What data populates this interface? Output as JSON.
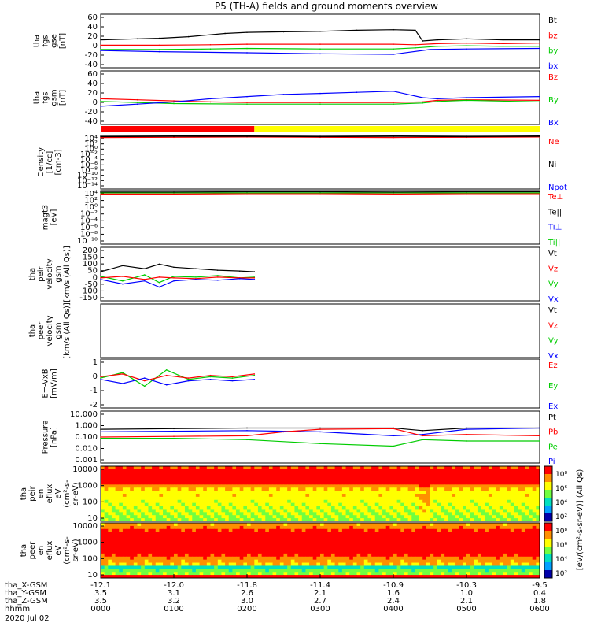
{
  "title": "P5 (TH-A) fields and ground moments overview",
  "colors": {
    "black": "#000000",
    "red": "#ff0000",
    "green": "#00cc00",
    "blue": "#0000ff",
    "yellow": "#ffff00"
  },
  "chart_data": {
    "type": "line",
    "title": "P5 (TH-A) fields and ground moments overview",
    "xaxis": {
      "rows": [
        {
          "label": "tha_X-GSM",
          "values": [
            "-12.1",
            "-12.0",
            "-11.8",
            "-11.4",
            "-10.9",
            "-10.3",
            "-9.5"
          ]
        },
        {
          "label": "tha_Y-GSM",
          "values": [
            "3.5",
            "3.1",
            "2.6",
            "2.1",
            "1.6",
            "1.0",
            "0.4"
          ]
        },
        {
          "label": "tha_Z-GSM",
          "values": [
            "3.5",
            "3.2",
            "3.0",
            "2.7",
            "2.4",
            "2.1",
            "1.8"
          ]
        },
        {
          "label": "hhmm",
          "values": [
            "0000",
            "0100",
            "0200",
            "0300",
            "0400",
            "0500",
            "0600"
          ]
        }
      ],
      "date": "2020 Jul 02",
      "range_hours": [
        0,
        6
      ]
    },
    "panels": [
      {
        "id": "fgs_gse",
        "ylabel": [
          "tha",
          "fgs",
          "gse",
          "[nT]"
        ],
        "yticks": [
          "60",
          "40",
          "20",
          "0",
          "-20",
          "-40"
        ],
        "ylim": [
          -40,
          60
        ],
        "legend": [
          {
            "name": "Bt",
            "color": "#000000"
          },
          {
            "name": "bz",
            "color": "#ff0000"
          },
          {
            "name": "by",
            "color": "#00cc00"
          },
          {
            "name": "bx",
            "color": "#0000ff"
          }
        ],
        "series": [
          {
            "name": "Bt",
            "color": "#000000",
            "x": [
              0,
              0.5,
              0.8,
              1.2,
              1.7,
              2.0,
              2.5,
              3.0,
              3.5,
              4.0,
              4.3,
              4.4,
              4.6,
              5.0,
              5.5,
              6.0
            ],
            "y": [
              12,
              14,
              15,
              18,
              24,
              26,
              27,
              28,
              30,
              31,
              30,
              10,
              12,
              14,
              12,
              12
            ]
          },
          {
            "name": "bz",
            "color": "#ff0000",
            "x": [
              0,
              0.8,
              1.5,
              2.0,
              3.0,
              4.0,
              4.3,
              4.6,
              5.0,
              5.5,
              6.0
            ],
            "y": [
              2,
              2,
              3,
              4,
              4,
              4,
              3,
              5,
              6,
              5,
              6
            ]
          },
          {
            "name": "by",
            "color": "#00cc00",
            "x": [
              0,
              0.8,
              1.5,
              2.0,
              3.0,
              4.0,
              4.3,
              4.6,
              5.0,
              5.5,
              6.0
            ],
            "y": [
              -6,
              -6,
              -5,
              -4,
              -5,
              -5,
              -3,
              0,
              1,
              0,
              0
            ]
          },
          {
            "name": "bx",
            "color": "#0000ff",
            "x": [
              0,
              0.8,
              2.0,
              3.0,
              4.0,
              4.5,
              5.0,
              6.0
            ],
            "y": [
              -8,
              -10,
              -12,
              -14,
              -15,
              -6,
              -5,
              -4
            ]
          }
        ]
      },
      {
        "id": "fgs_gsm",
        "ylabel": [
          "tha",
          "fgs",
          "gsm",
          "[nT]"
        ],
        "yticks": [
          "60",
          "40",
          "20",
          "0",
          "-20",
          "-40"
        ],
        "ylim": [
          -40,
          60
        ],
        "legend": [
          {
            "name": "Bz",
            "color": "#ff0000"
          },
          {
            "name": "By",
            "color": "#00cc00"
          },
          {
            "name": "Bx",
            "color": "#0000ff"
          }
        ],
        "series": [
          {
            "name": "Bz",
            "color": "#ff0000",
            "x": [
              0,
              0.5,
              1.0,
              1.5,
              2.0,
              3.0,
              4.0,
              4.4,
              4.6,
              5.0,
              6.0
            ],
            "y": [
              8,
              6,
              4,
              2,
              1,
              1,
              1,
              2,
              5,
              6,
              5
            ]
          },
          {
            "name": "By",
            "color": "#00cc00",
            "x": [
              0,
              0.5,
              1.0,
              2.0,
              3.0,
              4.0,
              4.4,
              4.6,
              5.0,
              6.0
            ],
            "y": [
              3,
              1,
              -1,
              -2,
              -2,
              -2,
              0,
              3,
              5,
              2
            ]
          },
          {
            "name": "Bx",
            "color": "#0000ff",
            "x": [
              0,
              0.5,
              1.0,
              1.5,
              2.0,
              2.5,
              3.0,
              3.5,
              4.0,
              4.4,
              4.6,
              5.0,
              6.0
            ],
            "y": [
              -6,
              -2,
              2,
              8,
              12,
              16,
              18,
              20,
              22,
              10,
              8,
              10,
              12
            ]
          }
        ]
      },
      {
        "id": "mode_bar",
        "type": "status",
        "segments": [
          {
            "from": 0,
            "to": 2.1,
            "color": "#ff0000"
          },
          {
            "from": 2.1,
            "to": 6,
            "color": "#ffff00"
          }
        ]
      },
      {
        "id": "density",
        "ylabel": [
          "Density",
          "[1/cc]",
          "[cm-3]"
        ],
        "yticks": [
          "10⁴",
          "10²",
          "10⁰",
          "10⁻²",
          "10⁻⁴",
          "10⁻⁶",
          "10⁻⁸",
          "10⁻¹⁰",
          "10⁻¹²",
          "10⁻¹⁴"
        ],
        "ylim": [
          -14,
          4
        ],
        "log": true,
        "legend": [
          {
            "name": "Ne",
            "color": "#ff0000"
          },
          {
            "name": "Ni",
            "color": "#000000"
          },
          {
            "name": "Npot",
            "color": "#0000ff"
          }
        ],
        "series": [
          {
            "name": "Ne",
            "color": "#ff0000",
            "x": [
              0,
              1,
              2,
              3,
              4,
              5,
              6
            ],
            "y": [
              3.3,
              3.4,
              3.5,
              3.4,
              3.3,
              3.4,
              3.5
            ]
          },
          {
            "name": "Ni",
            "color": "#000000",
            "x": [
              0,
              1,
              2,
              3,
              4,
              5,
              6
            ],
            "y": [
              3.6,
              3.7,
              3.7,
              3.6,
              3.7,
              3.6,
              3.7
            ]
          }
        ]
      },
      {
        "id": "temp",
        "ylabel": [
          "magt3",
          "[eV]"
        ],
        "yticks": [
          "10⁴",
          "10²",
          "10⁰",
          "10⁻²",
          "10⁻⁴",
          "10⁻⁶",
          "10⁻⁸",
          "10⁻¹⁰"
        ],
        "ylim": [
          -10,
          4
        ],
        "log": true,
        "legend": [
          {
            "name": "Te⊥",
            "color": "#ff0000"
          },
          {
            "name": "Te||",
            "color": "#000000"
          },
          {
            "name": "Ti⊥",
            "color": "#0000ff"
          },
          {
            "name": "Ti||",
            "color": "#00cc00"
          }
        ],
        "series": [
          {
            "name": "Te⊥",
            "color": "#ff0000",
            "x": [
              0,
              1,
              2,
              3,
              4,
              5,
              6
            ],
            "y": [
              3.1,
              3.1,
              3.2,
              3.2,
              3.1,
              3.2,
              3.2
            ]
          },
          {
            "name": "Ti||",
            "color": "#00cc00",
            "x": [
              0,
              1,
              2,
              3,
              4,
              5,
              6
            ],
            "y": [
              3.4,
              3.4,
              3.4,
              3.4,
              3.4,
              3.4,
              3.4
            ]
          },
          {
            "name": "Te||",
            "color": "#000000",
            "x": [
              0,
              1,
              2,
              3,
              4,
              5,
              6
            ],
            "y": [
              3.6,
              3.6,
              3.7,
              3.7,
              3.6,
              3.7,
              3.7
            ]
          }
        ]
      },
      {
        "id": "peir_vel",
        "ylabel": [
          "tha",
          "peir",
          "velocity",
          "gsm",
          "[km/s (All Qs)]"
        ],
        "yticks": [
          "200",
          "150",
          "100",
          "50",
          "0",
          "-50",
          "-100",
          "-150"
        ],
        "ylim": [
          -150,
          200
        ],
        "legend": [
          {
            "name": "Vt",
            "color": "#000000"
          },
          {
            "name": "Vz",
            "color": "#ff0000"
          },
          {
            "name": "Vy",
            "color": "#00cc00"
          },
          {
            "name": "Vx",
            "color": "#0000ff"
          }
        ],
        "series": [
          {
            "name": "Vt",
            "color": "#000000",
            "x": [
              0,
              0.3,
              0.6,
              0.8,
              1.0,
              1.3,
              1.6,
              1.9,
              2.1
            ],
            "y": [
              40,
              80,
              60,
              90,
              70,
              60,
              50,
              45,
              40
            ]
          },
          {
            "name": "Vy",
            "color": "#00cc00",
            "x": [
              0,
              0.3,
              0.6,
              0.8,
              1.0,
              1.3,
              1.6,
              1.9,
              2.1
            ],
            "y": [
              10,
              -20,
              20,
              -30,
              10,
              5,
              15,
              0,
              5
            ]
          },
          {
            "name": "Vz",
            "color": "#ff0000",
            "x": [
              0,
              0.3,
              0.6,
              0.8,
              1.0,
              1.3,
              1.6,
              1.9,
              2.1
            ],
            "y": [
              0,
              10,
              -10,
              5,
              0,
              -5,
              5,
              0,
              0
            ]
          },
          {
            "name": "Vx",
            "color": "#0000ff",
            "x": [
              0,
              0.3,
              0.6,
              0.8,
              1.0,
              1.3,
              1.6,
              1.9,
              2.1
            ],
            "y": [
              -10,
              -40,
              -20,
              -60,
              -20,
              -10,
              -15,
              -5,
              -10
            ]
          }
        ]
      },
      {
        "id": "peer_vel",
        "ylabel": [
          "tha",
          "peer",
          "velocity",
          "gsm",
          "[km/s (All Qs)]"
        ],
        "yticks": [],
        "ylim": [
          -150,
          200
        ],
        "legend": [
          {
            "name": "Vt",
            "color": "#000000"
          },
          {
            "name": "Vz",
            "color": "#ff0000"
          },
          {
            "name": "Vy",
            "color": "#00cc00"
          },
          {
            "name": "Vx",
            "color": "#0000ff"
          }
        ],
        "series": []
      },
      {
        "id": "efield",
        "ylabel": [
          "E=-VxB",
          "[mV/m]"
        ],
        "yticks": [
          "1",
          "0",
          "-1",
          "-2"
        ],
        "ylim": [
          -2,
          1.6
        ],
        "legend": [
          {
            "name": "Ez",
            "color": "#ff0000"
          },
          {
            "name": "Ey",
            "color": "#00cc00"
          },
          {
            "name": "Ex",
            "color": "#0000ff"
          }
        ],
        "series": [
          {
            "name": "Ey",
            "color": "#00cc00",
            "x": [
              0,
              0.3,
              0.6,
              0.9,
              1.2,
              1.5,
              1.8,
              2.1
            ],
            "y": [
              0.2,
              0.6,
              -0.4,
              0.8,
              0.1,
              0.3,
              0.2,
              0.4
            ]
          },
          {
            "name": "Ez",
            "color": "#ff0000",
            "x": [
              0,
              0.3,
              0.6,
              0.9,
              1.2,
              1.5,
              1.8,
              2.1
            ],
            "y": [
              0.3,
              0.5,
              0.0,
              0.4,
              0.2,
              0.4,
              0.3,
              0.5
            ]
          },
          {
            "name": "Ex",
            "color": "#0000ff",
            "x": [
              0,
              0.3,
              0.6,
              0.9,
              1.2,
              1.5,
              1.8,
              2.1
            ],
            "y": [
              0.1,
              -0.2,
              0.2,
              -0.3,
              0.0,
              0.1,
              0.0,
              0.1
            ]
          }
        ]
      },
      {
        "id": "pressure",
        "ylabel": [
          "Pressure",
          "[nPa]"
        ],
        "yticks": [
          "10.000",
          "1.000",
          "0.100",
          "0.010",
          "0.001"
        ],
        "ylim": [
          -3,
          1
        ],
        "log": true,
        "legend": [
          {
            "name": "Pt",
            "color": "#000000"
          },
          {
            "name": "Pb",
            "color": "#ff0000"
          },
          {
            "name": "Pe",
            "color": "#00cc00"
          },
          {
            "name": "Pi",
            "color": "#0000ff"
          }
        ],
        "series": [
          {
            "name": "Pt",
            "color": "#000000",
            "x": [
              0,
              1,
              2,
              3,
              4,
              4.4,
              5,
              6
            ],
            "y": [
              -0.4,
              -0.35,
              -0.3,
              -0.3,
              -0.3,
              -0.5,
              -0.3,
              -0.3
            ]
          },
          {
            "name": "Pi",
            "color": "#0000ff",
            "x": [
              0,
              1,
              2,
              3,
              4,
              4.4,
              5,
              6
            ],
            "y": [
              -0.6,
              -0.55,
              -0.5,
              -0.6,
              -0.9,
              -0.8,
              -0.4,
              -0.3
            ]
          },
          {
            "name": "Pb",
            "color": "#ff0000",
            "x": [
              0,
              1,
              2,
              2.5,
              3,
              4,
              4.4,
              5,
              6
            ],
            "y": [
              -1.0,
              -0.95,
              -0.9,
              -0.6,
              -0.4,
              -0.35,
              -0.9,
              -0.8,
              -0.9
            ]
          },
          {
            "name": "Pe",
            "color": "#00cc00",
            "x": [
              0,
              1,
              2,
              3,
              4,
              4.4,
              5,
              6
            ],
            "y": [
              -1.1,
              -1.1,
              -1.2,
              -1.5,
              -1.7,
              -1.2,
              -1.3,
              -1.3
            ]
          }
        ]
      },
      {
        "id": "peir_spec",
        "type": "heatmap",
        "ylabel": [
          "tha",
          "peir",
          "en",
          "eflux",
          "eV",
          "(cm²-s-",
          "sr-eV)"
        ],
        "yticks": [
          "10000",
          "1000",
          "100",
          "10"
        ],
        "ylim": [
          0.7,
          4.3
        ]
      },
      {
        "id": "peer_spec",
        "type": "heatmap",
        "ylabel": [
          "tha",
          "peer",
          "en",
          "eflux",
          "eV",
          "(cm²-s-",
          "sr-eV)"
        ],
        "yticks": [
          "10000",
          "1000",
          "100",
          "10"
        ],
        "ylim": [
          0.7,
          4.3
        ]
      }
    ],
    "colorbars": [
      {
        "panel": "peir_spec",
        "ticks": [
          "10⁸",
          "10⁶",
          "10⁴",
          "10²"
        ],
        "label": "[eV/(cm²-s-sr-eV)] (All Qs)"
      },
      {
        "panel": "peer_spec",
        "ticks": [
          "10⁸",
          "10⁶",
          "10⁴",
          "10²"
        ]
      }
    ]
  }
}
